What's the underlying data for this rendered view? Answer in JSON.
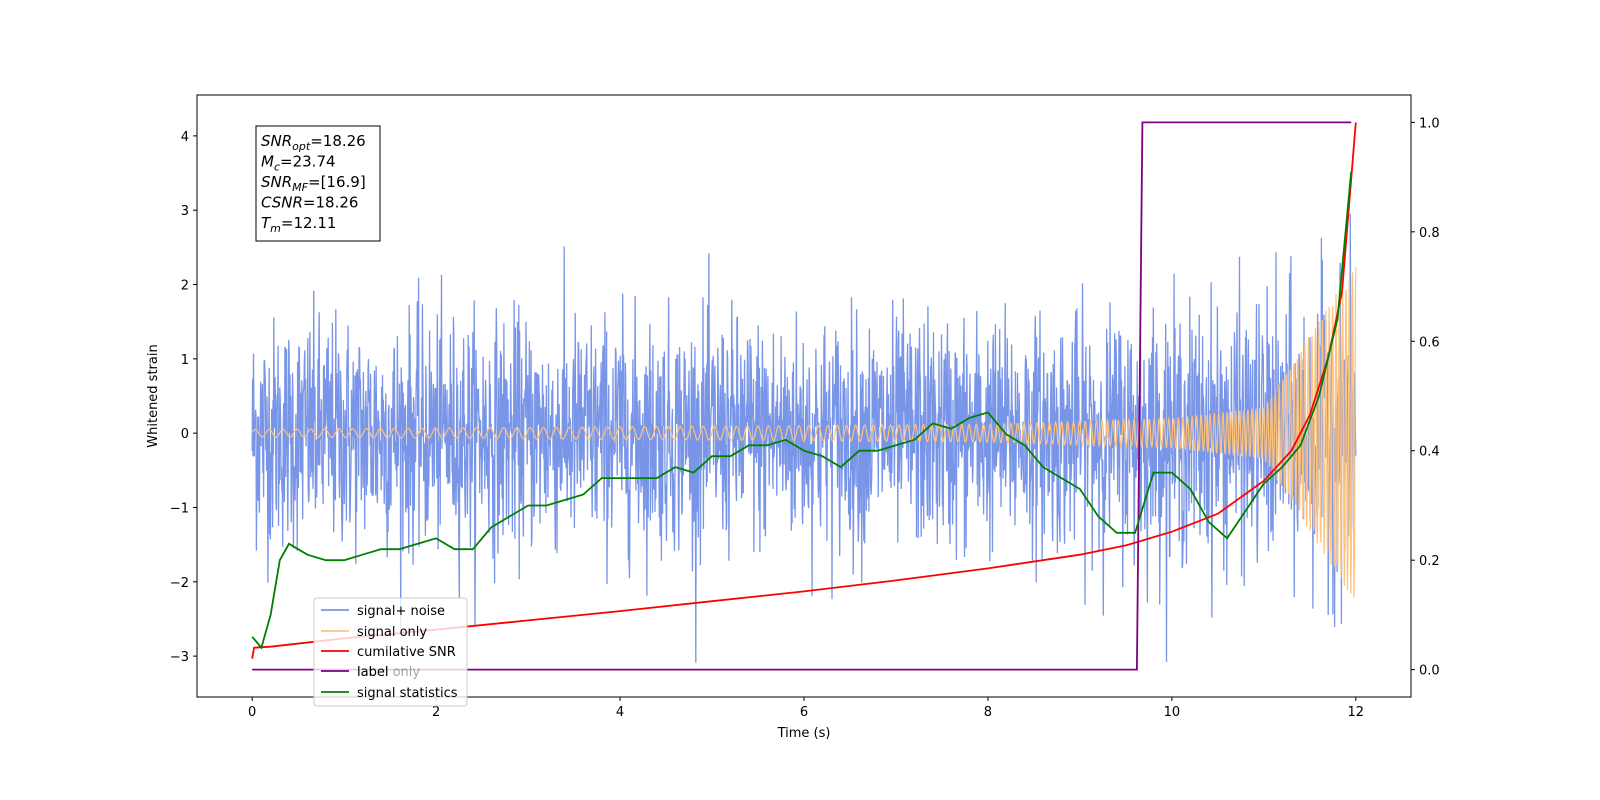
{
  "chart_data": {
    "type": "line",
    "title": "",
    "xlabel": "Time (s)",
    "ylabel": "Whitened strain",
    "xlim": [
      -0.6,
      12.6
    ],
    "ylim": [
      -3.55,
      4.55
    ],
    "y2lim": [
      -0.05,
      1.05
    ],
    "x_ticks": [
      0,
      2,
      4,
      6,
      8,
      10,
      12
    ],
    "x_tick_labels": [
      "0",
      "2",
      "4",
      "6",
      "8",
      "10",
      "12"
    ],
    "y_ticks": [
      -3,
      -2,
      -1,
      0,
      1,
      2,
      3,
      4
    ],
    "y_tick_labels": [
      "−3",
      "−2",
      "−1",
      "0",
      "1",
      "2",
      "3",
      "4"
    ],
    "y2_ticks": [
      0.0,
      0.2,
      0.4,
      0.6,
      0.8,
      1.0
    ],
    "y2_tick_labels": [
      "0.0",
      "0.2",
      "0.4",
      "0.6",
      "0.8",
      "1.0"
    ],
    "grid": false,
    "legend_position": "lower-left",
    "annotation_box": {
      "lines": [
        {
          "sym": "SNR",
          "sub": "opt",
          "text": "=18.26"
        },
        {
          "sym": "M",
          "sub": "c",
          "text": "=23.74"
        },
        {
          "sym": "SNR",
          "sub": "MF",
          "text": "=[16.9]"
        },
        {
          "sym": "CSNR",
          "sub": "",
          "text": "=18.26"
        },
        {
          "sym": "T",
          "sub": "m",
          "text": "=12.11"
        }
      ]
    },
    "series": [
      {
        "name": "signal+ noise",
        "color": "#7895e8",
        "axis": "left",
        "style": "noise",
        "x_range": [
          0,
          12
        ],
        "amplitude_envelope": [
          [
            0,
            2.1
          ],
          [
            9,
            2.1
          ],
          [
            11,
            2.4
          ],
          [
            12,
            2.8
          ]
        ]
      },
      {
        "name": "signal only",
        "color": "#ffc27a",
        "axis": "left",
        "style": "chirp",
        "x_range": [
          0,
          12
        ],
        "amplitude_envelope": [
          [
            0,
            0.05
          ],
          [
            8,
            0.12
          ],
          [
            10,
            0.2
          ],
          [
            11,
            0.35
          ],
          [
            12,
            2.3
          ]
        ]
      },
      {
        "name": "cumilative SNR",
        "color": "#ff0000",
        "axis": "right",
        "x": [
          0,
          0.02,
          0.2,
          1,
          2,
          3,
          4,
          5,
          6,
          7,
          8,
          9,
          9.5,
          10,
          10.5,
          11,
          11.3,
          11.5,
          11.7,
          11.85,
          12
        ],
        "y": [
          0.02,
          0.04,
          0.042,
          0.057,
          0.073,
          0.09,
          0.107,
          0.125,
          0.143,
          0.163,
          0.185,
          0.21,
          0.227,
          0.252,
          0.285,
          0.345,
          0.4,
          0.465,
          0.57,
          0.69,
          1.0
        ]
      },
      {
        "name": "label",
        "color": "#800080",
        "axis": "right",
        "x": [
          0,
          9.62,
          9.68,
          11.95
        ],
        "y": [
          0,
          0,
          1,
          1
        ]
      },
      {
        "name": "label only",
        "color": "#ff00ff",
        "axis": "right",
        "x": [],
        "y": []
      },
      {
        "name": "signal statistics",
        "color": "#008000",
        "axis": "right",
        "x": [
          0,
          0.1,
          0.2,
          0.3,
          0.4,
          0.6,
          0.8,
          1.0,
          1.2,
          1.4,
          1.6,
          1.8,
          2.0,
          2.2,
          2.4,
          2.6,
          2.8,
          3.0,
          3.2,
          3.4,
          3.6,
          3.8,
          4.0,
          4.2,
          4.4,
          4.6,
          4.8,
          5.0,
          5.2,
          5.4,
          5.6,
          5.8,
          6.0,
          6.2,
          6.4,
          6.6,
          6.8,
          7.0,
          7.2,
          7.4,
          7.6,
          7.8,
          8.0,
          8.2,
          8.4,
          8.6,
          8.8,
          9.0,
          9.2,
          9.4,
          9.6,
          9.8,
          10.0,
          10.2,
          10.4,
          10.6,
          10.8,
          11.0,
          11.2,
          11.4,
          11.6,
          11.8,
          11.95
        ],
        "y": [
          0.06,
          0.04,
          0.1,
          0.2,
          0.23,
          0.21,
          0.2,
          0.2,
          0.21,
          0.22,
          0.22,
          0.23,
          0.24,
          0.22,
          0.22,
          0.26,
          0.28,
          0.3,
          0.3,
          0.31,
          0.32,
          0.35,
          0.35,
          0.35,
          0.35,
          0.37,
          0.36,
          0.39,
          0.39,
          0.41,
          0.41,
          0.42,
          0.4,
          0.39,
          0.37,
          0.4,
          0.4,
          0.41,
          0.42,
          0.45,
          0.44,
          0.46,
          0.47,
          0.43,
          0.41,
          0.37,
          0.35,
          0.33,
          0.28,
          0.25,
          0.25,
          0.36,
          0.36,
          0.33,
          0.27,
          0.24,
          0.29,
          0.34,
          0.37,
          0.41,
          0.5,
          0.64,
          0.91
        ]
      }
    ]
  }
}
